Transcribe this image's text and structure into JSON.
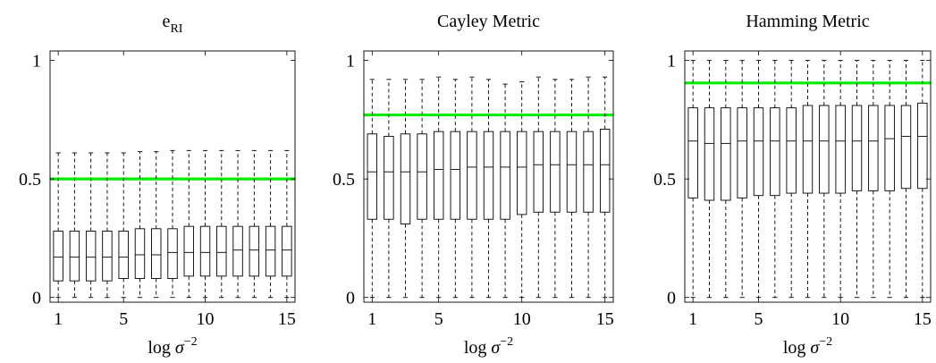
{
  "chart_data": [
    {
      "type": "box",
      "title": "e",
      "title_sub": "RI",
      "xlabel": "log σ",
      "xlabel_sup": "−2",
      "xlim": [
        0.5,
        15.5
      ],
      "ylim": [
        -0.02,
        1.04
      ],
      "xticks": [
        1,
        5,
        10,
        15
      ],
      "yticks": [
        0,
        0.5,
        1
      ],
      "ytick_labels": [
        "0",
        "0.5",
        "1"
      ],
      "reference_line": {
        "y": 0.5,
        "color": "#00ee00"
      },
      "x": [
        1,
        2,
        3,
        4,
        5,
        6,
        7,
        8,
        9,
        10,
        11,
        12,
        13,
        14,
        15
      ],
      "boxes": [
        {
          "min": 0.0,
          "q1": 0.07,
          "median": 0.17,
          "q3": 0.28,
          "max": 0.61
        },
        {
          "min": 0.0,
          "q1": 0.07,
          "median": 0.17,
          "q3": 0.28,
          "max": 0.61
        },
        {
          "min": 0.0,
          "q1": 0.07,
          "median": 0.17,
          "q3": 0.28,
          "max": 0.61
        },
        {
          "min": 0.0,
          "q1": 0.07,
          "median": 0.17,
          "q3": 0.28,
          "max": 0.61
        },
        {
          "min": 0.0,
          "q1": 0.08,
          "median": 0.17,
          "q3": 0.28,
          "max": 0.61
        },
        {
          "min": 0.0,
          "q1": 0.08,
          "median": 0.18,
          "q3": 0.29,
          "max": 0.615
        },
        {
          "min": 0.0,
          "q1": 0.08,
          "median": 0.18,
          "q3": 0.29,
          "max": 0.615
        },
        {
          "min": 0.0,
          "q1": 0.08,
          "median": 0.19,
          "q3": 0.29,
          "max": 0.62
        },
        {
          "min": 0.0,
          "q1": 0.09,
          "median": 0.19,
          "q3": 0.3,
          "max": 0.62
        },
        {
          "min": 0.0,
          "q1": 0.09,
          "median": 0.19,
          "q3": 0.3,
          "max": 0.62
        },
        {
          "min": 0.0,
          "q1": 0.09,
          "median": 0.19,
          "q3": 0.3,
          "max": 0.62
        },
        {
          "min": 0.0,
          "q1": 0.09,
          "median": 0.2,
          "q3": 0.3,
          "max": 0.62
        },
        {
          "min": 0.0,
          "q1": 0.09,
          "median": 0.2,
          "q3": 0.3,
          "max": 0.62
        },
        {
          "min": 0.0,
          "q1": 0.09,
          "median": 0.2,
          "q3": 0.3,
          "max": 0.62
        },
        {
          "min": 0.0,
          "q1": 0.09,
          "median": 0.2,
          "q3": 0.3,
          "max": 0.62
        }
      ]
    },
    {
      "type": "box",
      "title": "Cayley Metric",
      "title_sub": "",
      "xlabel": "log σ",
      "xlabel_sup": "−2",
      "xlim": [
        0.5,
        15.5
      ],
      "ylim": [
        -0.02,
        1.04
      ],
      "xticks": [
        1,
        5,
        10,
        15
      ],
      "yticks": [
        0,
        0.5,
        1
      ],
      "ytick_labels": [
        "0",
        "0.5",
        "1"
      ],
      "reference_line": {
        "y": 0.77,
        "color": "#00ee00"
      },
      "x": [
        1,
        2,
        3,
        4,
        5,
        6,
        7,
        8,
        9,
        10,
        11,
        12,
        13,
        14,
        15
      ],
      "boxes": [
        {
          "min": 0.0,
          "q1": 0.33,
          "median": 0.53,
          "q3": 0.69,
          "max": 0.92
        },
        {
          "min": 0.0,
          "q1": 0.33,
          "median": 0.53,
          "q3": 0.68,
          "max": 0.92
        },
        {
          "min": 0.0,
          "q1": 0.31,
          "median": 0.53,
          "q3": 0.69,
          "max": 0.92
        },
        {
          "min": 0.0,
          "q1": 0.33,
          "median": 0.53,
          "q3": 0.69,
          "max": 0.92
        },
        {
          "min": 0.0,
          "q1": 0.33,
          "median": 0.54,
          "q3": 0.7,
          "max": 0.93
        },
        {
          "min": 0.0,
          "q1": 0.33,
          "median": 0.54,
          "q3": 0.7,
          "max": 0.92
        },
        {
          "min": 0.0,
          "q1": 0.33,
          "median": 0.55,
          "q3": 0.7,
          "max": 0.93
        },
        {
          "min": 0.0,
          "q1": 0.33,
          "median": 0.55,
          "q3": 0.7,
          "max": 0.92
        },
        {
          "min": 0.0,
          "q1": 0.33,
          "median": 0.55,
          "q3": 0.7,
          "max": 0.9
        },
        {
          "min": 0.0,
          "q1": 0.35,
          "median": 0.55,
          "q3": 0.7,
          "max": 0.91
        },
        {
          "min": 0.0,
          "q1": 0.36,
          "median": 0.56,
          "q3": 0.7,
          "max": 0.93
        },
        {
          "min": 0.0,
          "q1": 0.36,
          "median": 0.56,
          "q3": 0.7,
          "max": 0.92
        },
        {
          "min": 0.0,
          "q1": 0.36,
          "median": 0.56,
          "q3": 0.7,
          "max": 0.92
        },
        {
          "min": 0.0,
          "q1": 0.36,
          "median": 0.56,
          "q3": 0.7,
          "max": 0.93
        },
        {
          "min": 0.0,
          "q1": 0.36,
          "median": 0.56,
          "q3": 0.71,
          "max": 0.93
        }
      ]
    },
    {
      "type": "box",
      "title": "Hamming Metric",
      "title_sub": "",
      "xlabel": "log σ",
      "xlabel_sup": "−2",
      "xlim": [
        0.5,
        15.5
      ],
      "ylim": [
        -0.02,
        1.04
      ],
      "xticks": [
        1,
        5,
        10,
        15
      ],
      "yticks": [
        0,
        0.5,
        1
      ],
      "ytick_labels": [
        "0",
        "0.5",
        "1"
      ],
      "reference_line": {
        "y": 0.905,
        "color": "#00ee00"
      },
      "x": [
        1,
        2,
        3,
        4,
        5,
        6,
        7,
        8,
        9,
        10,
        11,
        12,
        13,
        14,
        15
      ],
      "boxes": [
        {
          "min": 0.0,
          "q1": 0.42,
          "median": 0.66,
          "q3": 0.8,
          "max": 1.0
        },
        {
          "min": 0.0,
          "q1": 0.41,
          "median": 0.65,
          "q3": 0.8,
          "max": 1.0
        },
        {
          "min": 0.0,
          "q1": 0.41,
          "median": 0.65,
          "q3": 0.8,
          "max": 1.0
        },
        {
          "min": 0.0,
          "q1": 0.42,
          "median": 0.66,
          "q3": 0.8,
          "max": 1.0
        },
        {
          "min": 0.0,
          "q1": 0.43,
          "median": 0.66,
          "q3": 0.8,
          "max": 1.0
        },
        {
          "min": 0.0,
          "q1": 0.43,
          "median": 0.66,
          "q3": 0.8,
          "max": 1.0
        },
        {
          "min": 0.0,
          "q1": 0.44,
          "median": 0.66,
          "q3": 0.8,
          "max": 1.0
        },
        {
          "min": 0.0,
          "q1": 0.44,
          "median": 0.66,
          "q3": 0.81,
          "max": 1.0
        },
        {
          "min": 0.0,
          "q1": 0.44,
          "median": 0.66,
          "q3": 0.81,
          "max": 1.0
        },
        {
          "min": 0.0,
          "q1": 0.44,
          "median": 0.66,
          "q3": 0.81,
          "max": 1.0
        },
        {
          "min": 0.0,
          "q1": 0.45,
          "median": 0.66,
          "q3": 0.81,
          "max": 1.0
        },
        {
          "min": 0.0,
          "q1": 0.45,
          "median": 0.66,
          "q3": 0.81,
          "max": 1.0
        },
        {
          "min": 0.0,
          "q1": 0.45,
          "median": 0.67,
          "q3": 0.81,
          "max": 1.0
        },
        {
          "min": 0.0,
          "q1": 0.46,
          "median": 0.68,
          "q3": 0.81,
          "max": 1.0
        },
        {
          "min": 0.0,
          "q1": 0.46,
          "median": 0.68,
          "q3": 0.82,
          "max": 1.0
        }
      ]
    }
  ]
}
